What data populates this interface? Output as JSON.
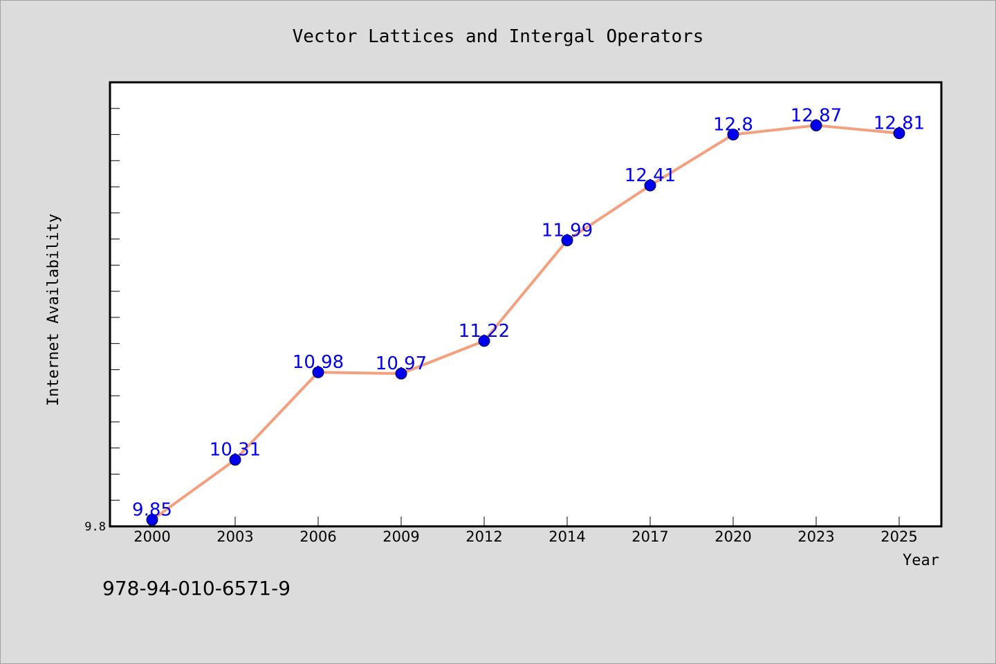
{
  "isbn": "978-94-010-6571-9",
  "chart_data": {
    "type": "line",
    "title": "Vector Lattices and Intergal Operators",
    "xlabel": "Year",
    "ylabel": "Internet Availability",
    "categories": [
      "2000",
      "2003",
      "2006",
      "2009",
      "2012",
      "2014",
      "2017",
      "2020",
      "2023",
      "2025"
    ],
    "series": [
      {
        "values": [
          9.85,
          10.31,
          10.98,
          10.97,
          11.22,
          11.99,
          12.41,
          12.8,
          12.87,
          12.81
        ],
        "data_labels": [
          "9.85",
          "10.31",
          "10.98",
          "10.97",
          "11.22",
          "11.99",
          "12.41",
          "12.8",
          "12.87",
          "12.81"
        ]
      }
    ],
    "y_tick_labels": [
      "9.8"
    ],
    "y_min_label_value": 9.8,
    "ylim": [
      9.8,
      13.2
    ],
    "line_color": "#f4a07e",
    "marker_color": "#0000ee",
    "label_color": "#0000ee",
    "plot_background": "#ffffff",
    "page_background": "#dcdcdc",
    "grid": false,
    "legend": "none"
  }
}
